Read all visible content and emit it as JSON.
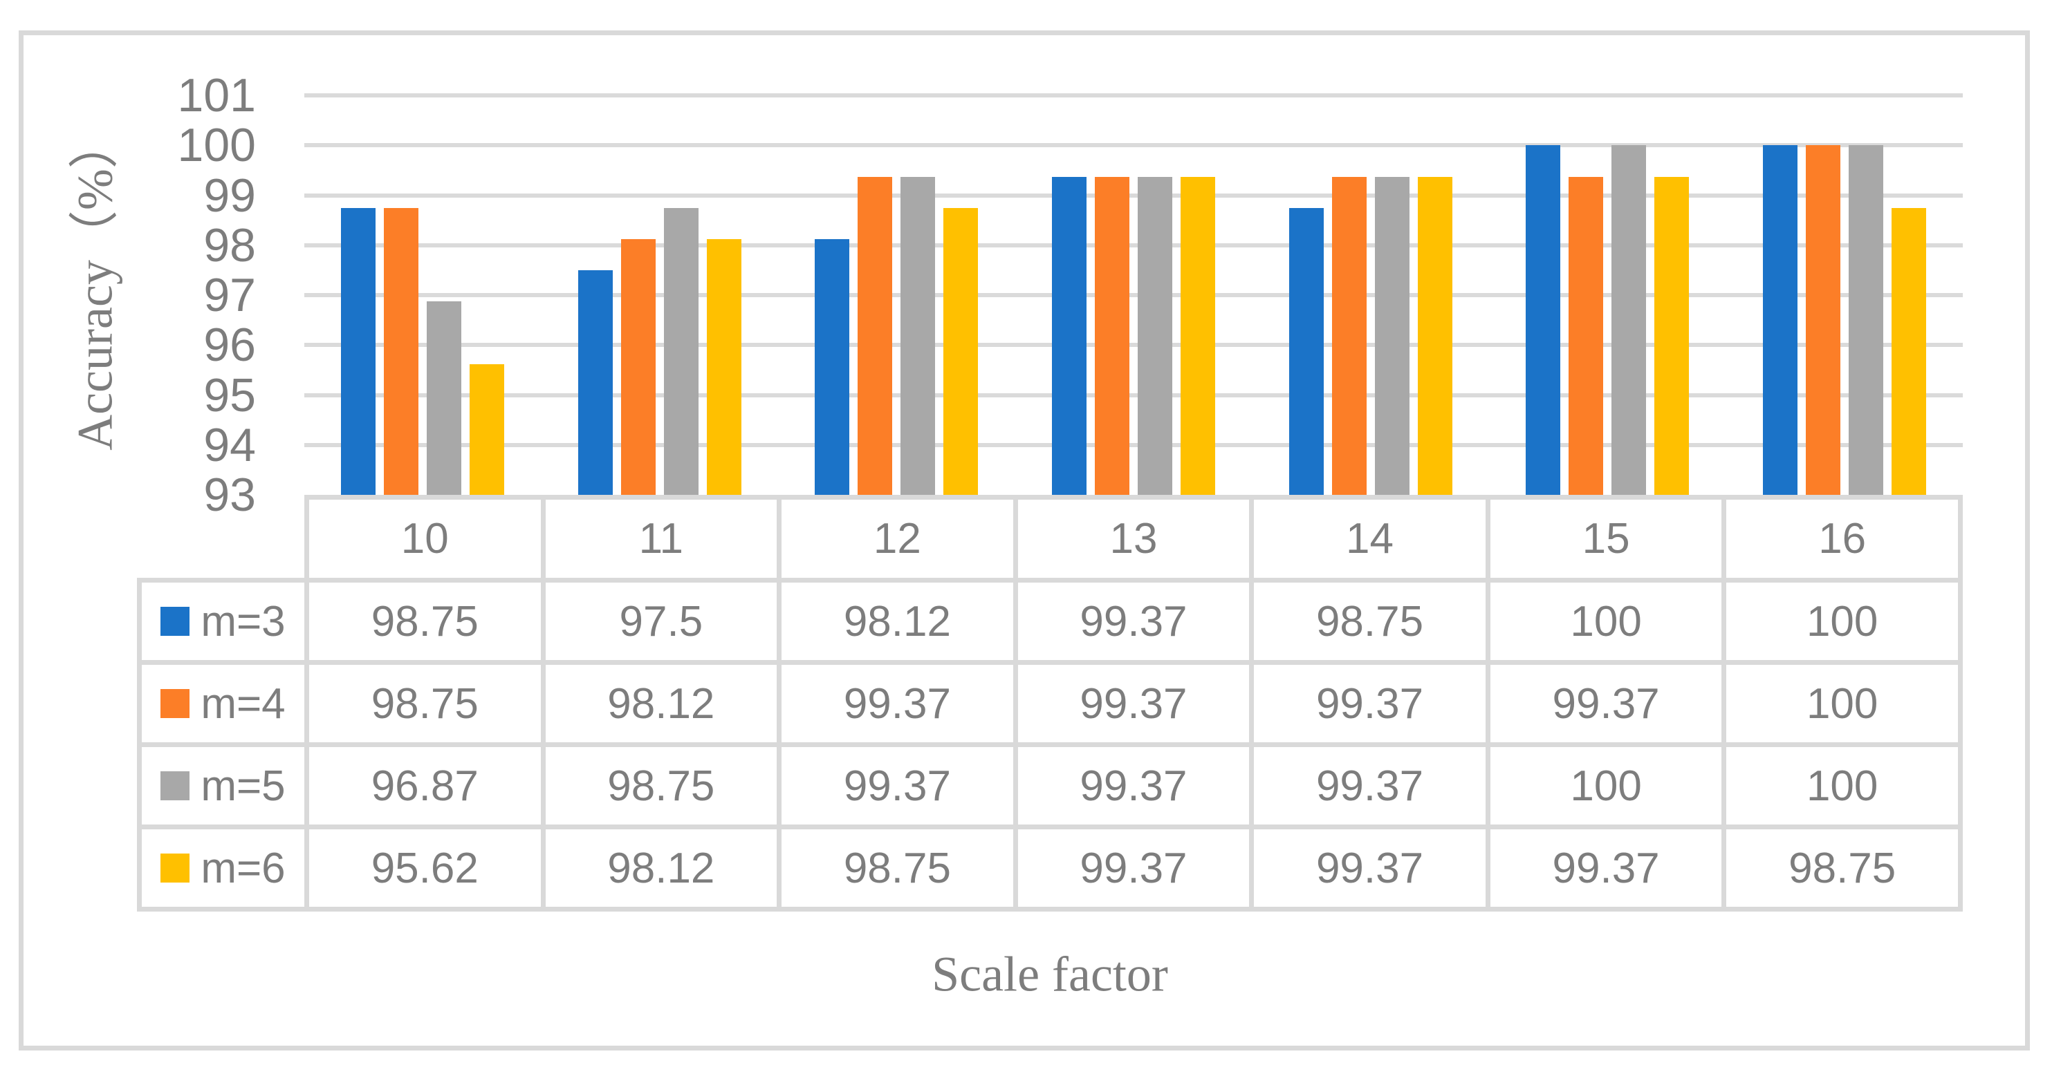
{
  "chart_data": {
    "type": "bar",
    "title": "",
    "xlabel": "Scale factor",
    "ylabel": "Accuracy（%）",
    "categories": [
      "10",
      "11",
      "12",
      "13",
      "14",
      "15",
      "16"
    ],
    "series": [
      {
        "name": "m=3",
        "color": "#1B73C8",
        "values": [
          98.75,
          97.5,
          98.12,
          99.37,
          98.75,
          100,
          100
        ]
      },
      {
        "name": "m=4",
        "color": "#FC7E27",
        "values": [
          98.75,
          98.12,
          99.37,
          99.37,
          99.37,
          99.37,
          100
        ]
      },
      {
        "name": "m=5",
        "color": "#A8A8A8",
        "values": [
          96.87,
          98.75,
          99.37,
          99.37,
          99.37,
          100,
          100
        ]
      },
      {
        "name": "m=6",
        "color": "#FFC000",
        "values": [
          95.62,
          98.12,
          98.75,
          99.37,
          99.37,
          99.37,
          98.75
        ]
      }
    ],
    "ylim": [
      93,
      101
    ],
    "yticks": [
      93,
      94,
      95,
      96,
      97,
      98,
      99,
      100,
      101
    ],
    "grid": true,
    "legend_position": "table-left",
    "layout_hint": "clustered column chart with data table beneath plot"
  },
  "colors": {
    "gridline": "#DADADA",
    "table_border": "#D9D9D9",
    "figure_border": "#D9D9D9",
    "text": "#7D7D7D",
    "background": "#FFFFFF"
  }
}
